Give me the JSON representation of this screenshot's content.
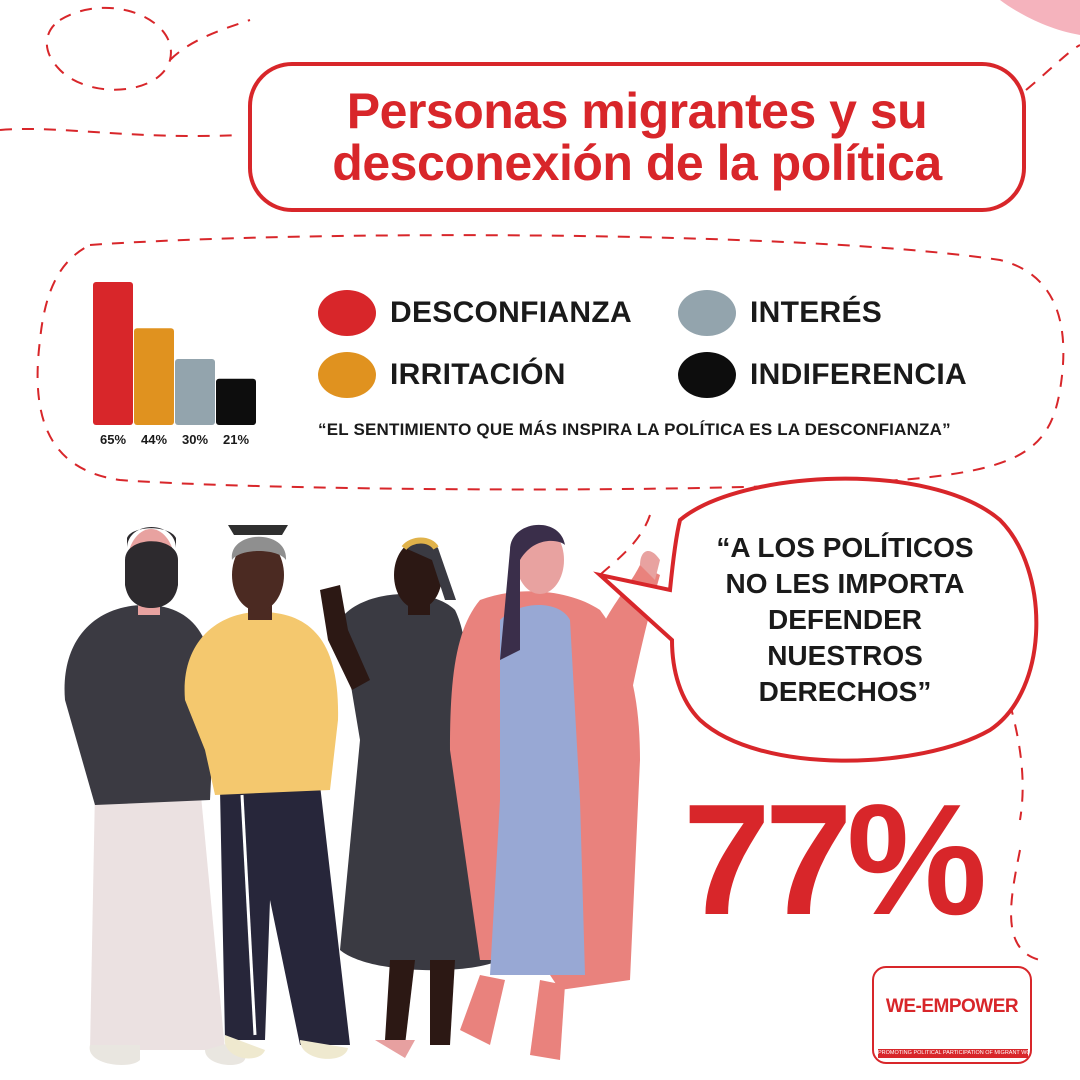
{
  "title": {
    "line1": "Personas migrantes y su",
    "line2": "desconexión de la política"
  },
  "chart_data": {
    "type": "bar",
    "categories": [
      "DESCONFIANZA",
      "IRRITACIÓN",
      "INTERÉS",
      "INDIFERENCIA"
    ],
    "values": [
      65,
      44,
      30,
      21
    ],
    "value_labels": [
      "65%",
      "44%",
      "30%",
      "21%"
    ],
    "colors": [
      "#d8262a",
      "#e0921f",
      "#93a4ad",
      "#0d0d0d"
    ],
    "ylim": [
      0,
      65
    ],
    "legend_placement": "right",
    "title": "",
    "xlabel": "",
    "ylabel": ""
  },
  "legend": [
    {
      "label": "DESCONFIANZA",
      "color": "#d8262a"
    },
    {
      "label": "INTERÉS",
      "color": "#93a4ad"
    },
    {
      "label": "IRRITACIÓN",
      "color": "#e0921f"
    },
    {
      "label": "INDIFERENCIA",
      "color": "#0d0d0d"
    }
  ],
  "chart_quote": "“EL SENTIMIENTO QUE MÁS INSPIRA LA POLÍTICA ES LA DESCONFIANZA”",
  "bubble_quote": {
    "line1": "“A LOS POLÍTICOS",
    "line2": "NO LES IMPORTA",
    "line3": "DEFENDER NUESTROS",
    "line4": "DERECHOS”"
  },
  "big_percentage": "77%",
  "logo": {
    "name": "WE-EMPOWER",
    "tagline": "PROMOTING POLITICAL PARTICIPATION OF MIGRANT WOMEN IN EUROPE"
  },
  "colors": {
    "accent": "#d8262a",
    "irritation": "#e0921f",
    "interest": "#93a4ad",
    "indifference": "#0d0d0d"
  }
}
